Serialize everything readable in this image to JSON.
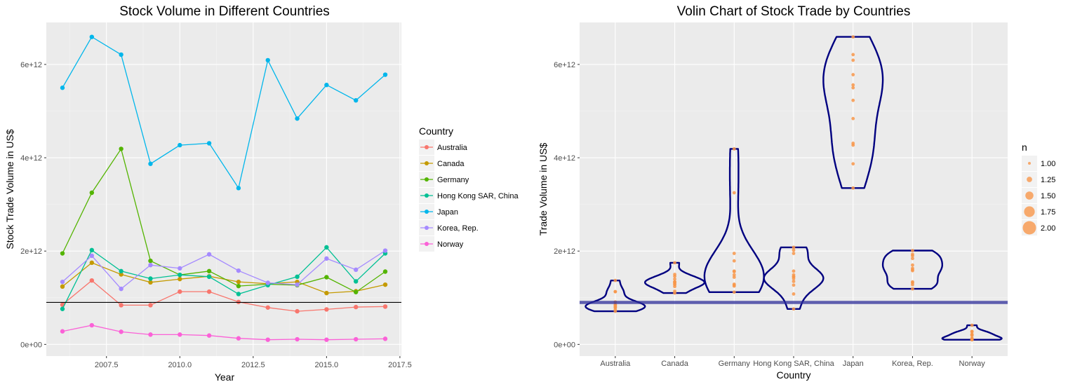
{
  "chart_data": [
    {
      "type": "line",
      "title": "Stock Volume in Different Countries",
      "xlabel": "Year",
      "ylabel": "Stock Trade Volume in US$",
      "xlim": [
        2005.45,
        2017.55
      ],
      "ylim": [
        -250000000000.0,
        6900000000000.0
      ],
      "xticks": [
        2007.5,
        2010.0,
        2012.5,
        2015.0,
        2017.5
      ],
      "xtick_labels": [
        "2007.5",
        "2010.0",
        "2012.5",
        "2015.0",
        "2017.5"
      ],
      "yticks": [
        0,
        2000000000000.0,
        4000000000000.0,
        6000000000000.0
      ],
      "ytick_labels": [
        "0e+00",
        "2e+12",
        "4e+12",
        "6e+12"
      ],
      "hline": 900000000000.0,
      "grid": true,
      "legend": {
        "title": "Country",
        "position": "right"
      },
      "x": [
        2006,
        2007,
        2008,
        2009,
        2010,
        2011,
        2012,
        2013,
        2014,
        2015,
        2016,
        2017
      ],
      "series": [
        {
          "name": "Australia",
          "color": "#F8766D",
          "values": [
            850000000000.0,
            1370000000000.0,
            840000000000.0,
            840000000000.0,
            1130000000000.0,
            1130000000000.0,
            910000000000.0,
            790000000000.0,
            710000000000.0,
            750000000000.0,
            800000000000.0,
            810000000000.0
          ]
        },
        {
          "name": "Canada",
          "color": "#C49A00",
          "values": [
            1240000000000.0,
            1750000000000.0,
            1500000000000.0,
            1330000000000.0,
            1400000000000.0,
            1460000000000.0,
            1340000000000.0,
            1300000000000.0,
            1340000000000.0,
            1100000000000.0,
            1140000000000.0,
            1280000000000.0
          ]
        },
        {
          "name": "Germany",
          "color": "#53B400",
          "values": [
            1950000000000.0,
            3250000000000.0,
            4190000000000.0,
            1790000000000.0,
            1490000000000.0,
            1570000000000.0,
            1250000000000.0,
            1290000000000.0,
            1270000000000.0,
            1440000000000.0,
            1120000000000.0,
            1560000000000.0
          ]
        },
        {
          "name": "Hong Kong SAR, China",
          "color": "#00C094",
          "values": [
            760000000000.0,
            2020000000000.0,
            1570000000000.0,
            1410000000000.0,
            1490000000000.0,
            1450000000000.0,
            1080000000000.0,
            1270000000000.0,
            1450000000000.0,
            2080000000000.0,
            1350000000000.0,
            1950000000000.0
          ]
        },
        {
          "name": "Japan",
          "color": "#00B6EB",
          "values": [
            5500000000000.0,
            6590000000000.0,
            6210000000000.0,
            3870000000000.0,
            4270000000000.0,
            4310000000000.0,
            3350000000000.0,
            6090000000000.0,
            4840000000000.0,
            5560000000000.0,
            5230000000000.0,
            5780000000000.0
          ]
        },
        {
          "name": "Korea, Rep.",
          "color": "#A58AFF",
          "values": [
            1340000000000.0,
            1900000000000.0,
            1190000000000.0,
            1700000000000.0,
            1630000000000.0,
            1930000000000.0,
            1580000000000.0,
            1320000000000.0,
            1280000000000.0,
            1840000000000.0,
            1600000000000.0,
            2010000000000.0
          ]
        },
        {
          "name": "Norway",
          "color": "#FB61D7",
          "values": [
            280000000000.0,
            410000000000.0,
            270000000000.0,
            210000000000.0,
            210000000000.0,
            190000000000.0,
            130000000000.0,
            100000000000.0,
            110000000000.0,
            100000000000.0,
            110000000000.0,
            120000000000.0
          ]
        }
      ]
    },
    {
      "type": "violin",
      "title": "Volin Chart of Stock Trade by Countries",
      "xlabel": "Country",
      "ylabel": "Trade Volume in US$",
      "ylim": [
        -250000000000.0,
        6900000000000.0
      ],
      "yticks": [
        0,
        2000000000000.0,
        4000000000000.0,
        6000000000000.0
      ],
      "ytick_labels": [
        "0e+00",
        "2e+12",
        "4e+12",
        "6e+12"
      ],
      "hline": 900000000000.0,
      "grid": true,
      "categories": [
        "Australia",
        "Canada",
        "Germany",
        "Hong Kong SAR, China",
        "Japan",
        "Korea, Rep.",
        "Norway"
      ],
      "outline_color": "#000080",
      "point_color": "#F8964A",
      "legend": {
        "title": "n",
        "position": "right",
        "entries": [
          "1.00",
          "1.25",
          "1.50",
          "1.75",
          "2.00"
        ]
      }
    }
  ]
}
